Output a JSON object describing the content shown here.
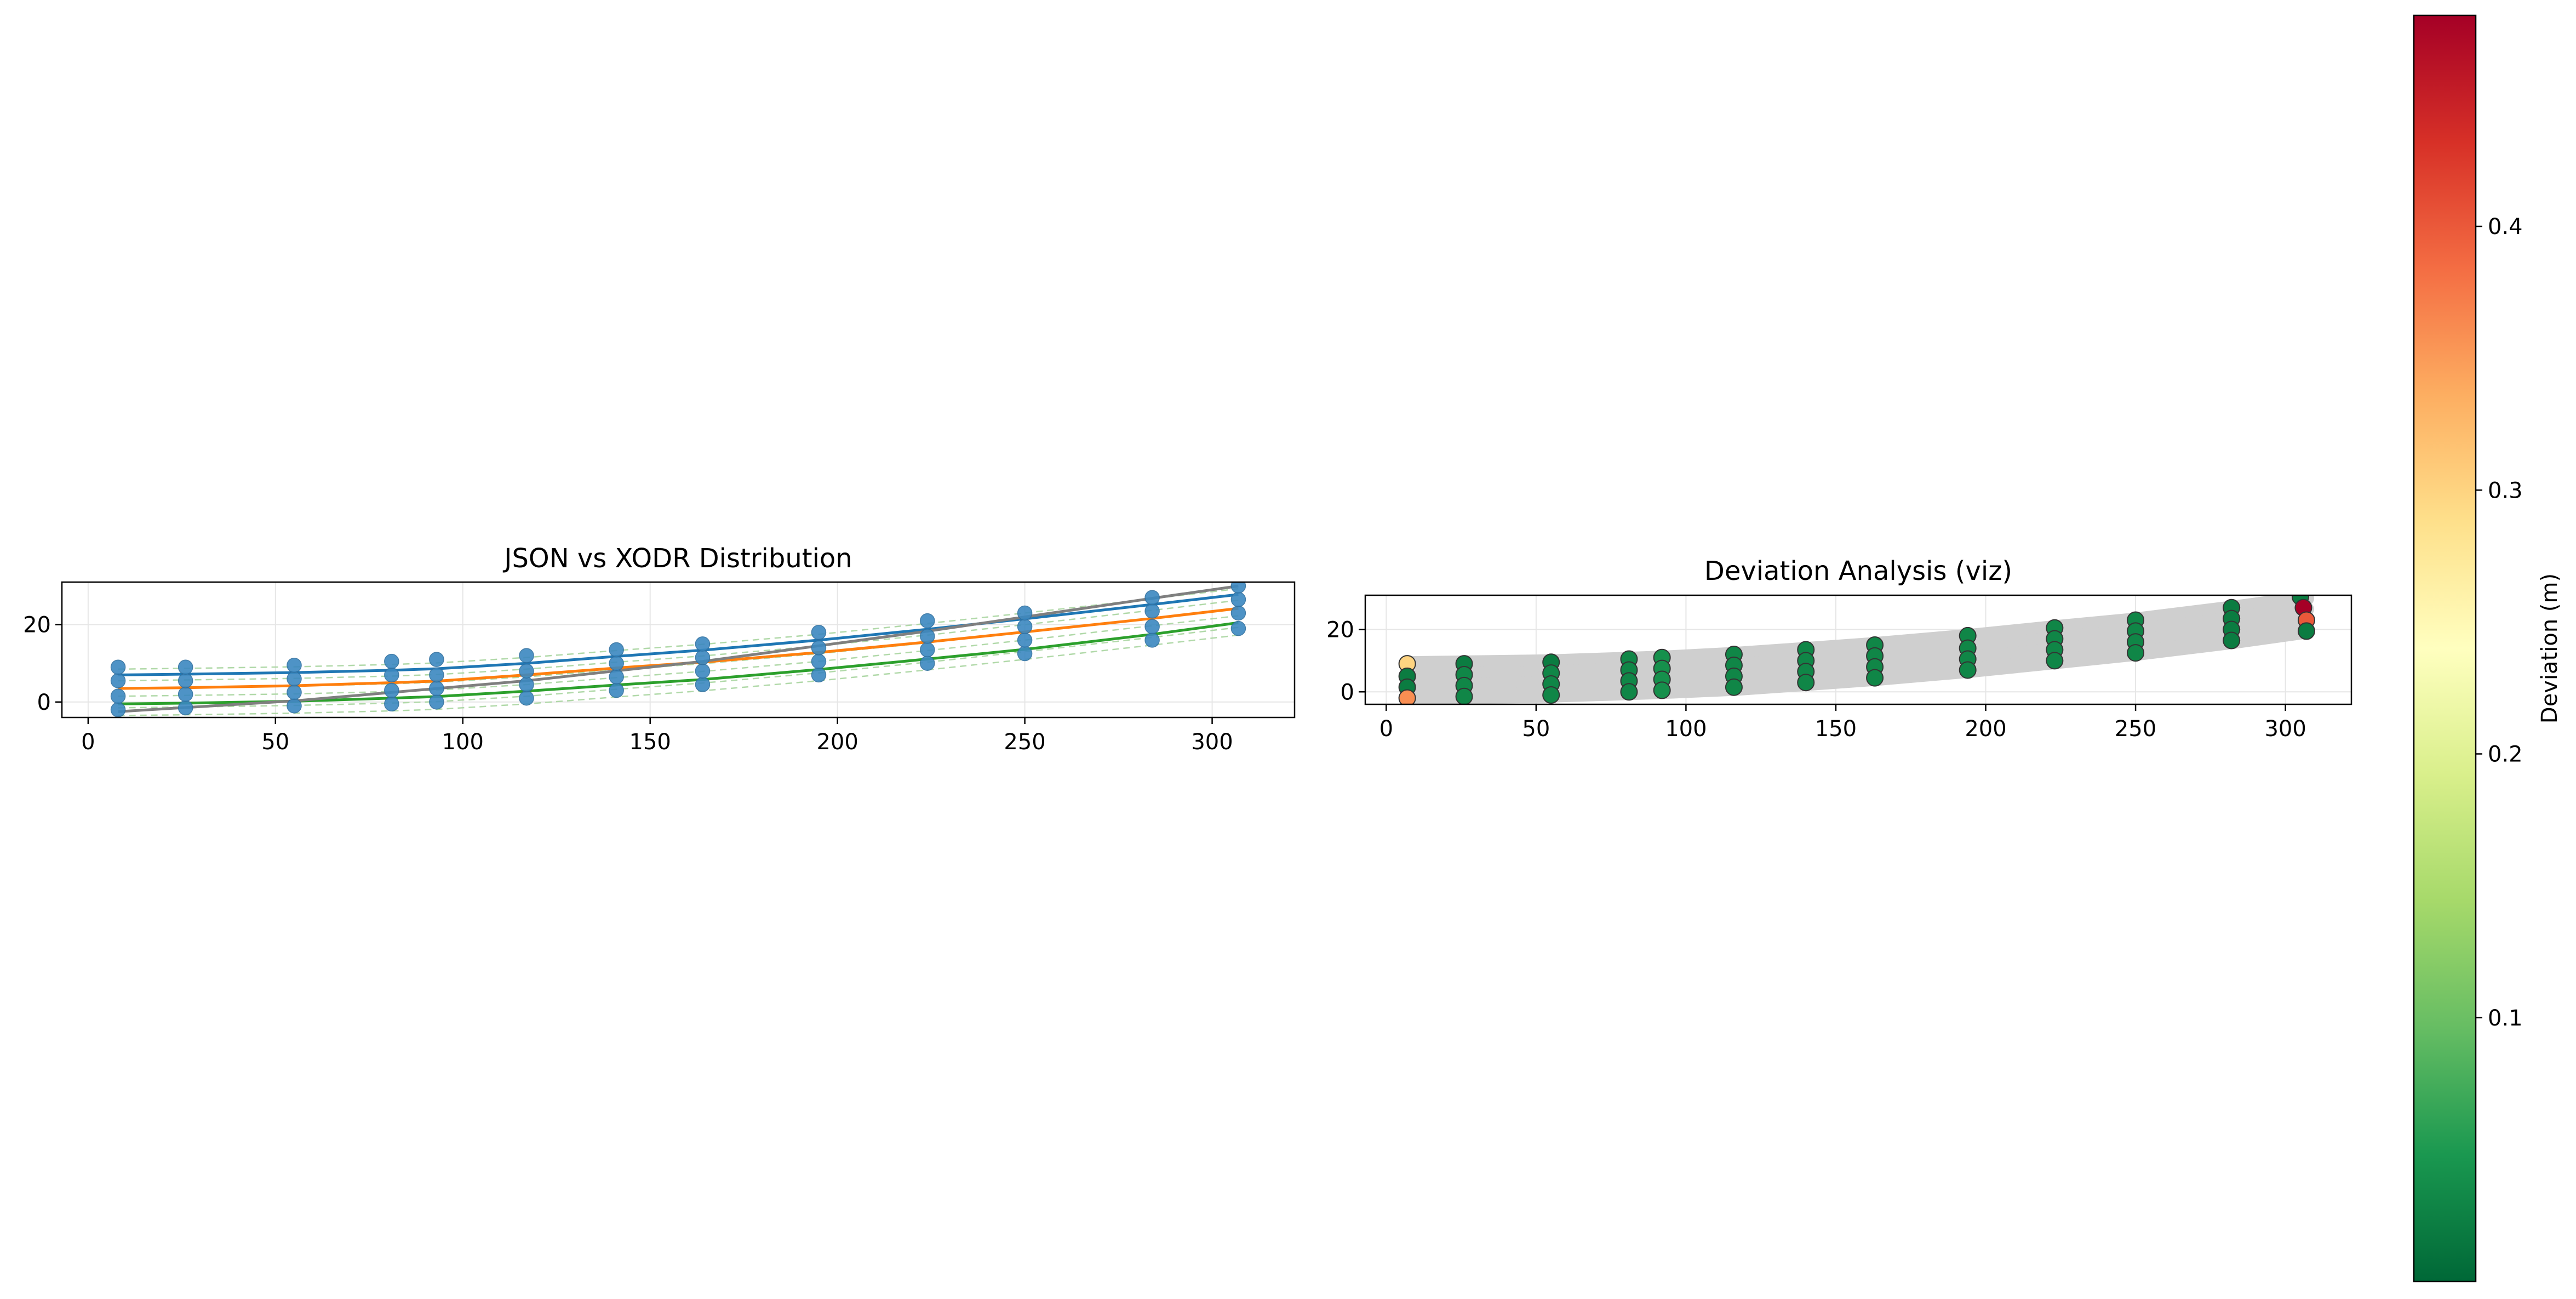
{
  "figure": {
    "background": "#ffffff"
  },
  "chart_data": [
    {
      "type": "line",
      "title": "JSON vs XODR Distribution",
      "xlabel": "",
      "ylabel": "",
      "xlim": [
        -7,
        322
      ],
      "ylim": [
        -4,
        31
      ],
      "xticks": [
        0,
        50,
        100,
        150,
        200,
        250,
        300
      ],
      "yticks": [
        0,
        20
      ],
      "grid": true,
      "legend": "none",
      "x_stations": [
        8,
        26,
        55,
        81,
        93,
        117,
        141,
        164,
        195,
        224,
        250,
        284,
        307
      ],
      "json_point_color": "#3b88c0",
      "json_points": [
        [
          8,
          -2
        ],
        [
          8,
          1.5
        ],
        [
          8,
          5.5
        ],
        [
          8,
          9
        ],
        [
          26,
          -1.5
        ],
        [
          26,
          2
        ],
        [
          26,
          5.5
        ],
        [
          26,
          9
        ],
        [
          55,
          -1
        ],
        [
          55,
          2.5
        ],
        [
          55,
          6
        ],
        [
          55,
          9.5
        ],
        [
          81,
          -0.5
        ],
        [
          81,
          3
        ],
        [
          81,
          7
        ],
        [
          81,
          10.5
        ],
        [
          93,
          0
        ],
        [
          93,
          3.5
        ],
        [
          93,
          7
        ],
        [
          93,
          11
        ],
        [
          117,
          1
        ],
        [
          117,
          4.5
        ],
        [
          117,
          8
        ],
        [
          117,
          12
        ],
        [
          141,
          3
        ],
        [
          141,
          6.5
        ],
        [
          141,
          10
        ],
        [
          141,
          13.5
        ],
        [
          164,
          4.5
        ],
        [
          164,
          8
        ],
        [
          164,
          11.5
        ],
        [
          164,
          15
        ],
        [
          195,
          7
        ],
        [
          195,
          10.5
        ],
        [
          195,
          14
        ],
        [
          195,
          18
        ],
        [
          224,
          10
        ],
        [
          224,
          13.5
        ],
        [
          224,
          17
        ],
        [
          224,
          21
        ],
        [
          250,
          12.5
        ],
        [
          250,
          16
        ],
        [
          250,
          19.5
        ],
        [
          250,
          23
        ],
        [
          284,
          16
        ],
        [
          284,
          19.5
        ],
        [
          284,
          23.5
        ],
        [
          284,
          27
        ],
        [
          307,
          19
        ],
        [
          307,
          23
        ],
        [
          307,
          26.5
        ],
        [
          307,
          30
        ]
      ],
      "series": [
        {
          "color": "#1f77b4",
          "x": [
            8,
            26,
            55,
            81,
            93,
            117,
            141,
            164,
            195,
            224,
            250,
            284,
            307
          ],
          "y": [
            7,
            7.2,
            7.6,
            8.2,
            8.6,
            10,
            11.8,
            13.4,
            16,
            18.8,
            21.5,
            25.2,
            27.8
          ]
        },
        {
          "color": "#ff7f0e",
          "x": [
            8,
            26,
            55,
            81,
            93,
            117,
            141,
            164,
            195,
            224,
            250,
            284,
            307
          ],
          "y": [
            3.5,
            3.7,
            4.2,
            5,
            5.4,
            7,
            8.8,
            10.3,
            12.8,
            15.5,
            18.1,
            21.6,
            24.2
          ]
        },
        {
          "color": "#2ca02c",
          "x": [
            8,
            26,
            55,
            81,
            93,
            117,
            141,
            164,
            195,
            224,
            250,
            284,
            307
          ],
          "y": [
            -0.5,
            -0.3,
            0.2,
            1,
            1.4,
            2.8,
            4.4,
            5.8,
            8.4,
            11.1,
            13.6,
            17.5,
            20.5
          ]
        },
        {
          "color": "#7f7f7f",
          "x": [
            8,
            55,
            117,
            164,
            224,
            284,
            307
          ],
          "y": [
            -2.5,
            0.3,
            5.5,
            10.5,
            18.3,
            26.8,
            30
          ]
        }
      ],
      "reference_lines": {
        "color": "#a8d5a0",
        "offsets": [
          -3.5,
          -1.5,
          1.5,
          3.5,
          5.5,
          8.5
        ]
      }
    },
    {
      "type": "scatter",
      "title": "Deviation Analysis (viz)",
      "xlabel": "",
      "ylabel": "",
      "xlim": [
        -7,
        322
      ],
      "ylim": [
        -4,
        31
      ],
      "xticks": [
        0,
        50,
        100,
        150,
        200,
        250,
        300
      ],
      "yticks": [
        0,
        20
      ],
      "grid": true,
      "lane_band_color": "#cfcfcf",
      "lanes": [
        {
          "x": [
            8,
            26,
            55,
            81,
            93,
            117,
            141,
            164,
            195,
            224,
            250,
            284,
            307
          ],
          "y": [
            9,
            9.2,
            9.6,
            10.4,
            10.8,
            12,
            13.6,
            15.2,
            17.8,
            20.6,
            23,
            27,
            30
          ]
        },
        {
          "x": [
            8,
            26,
            55,
            81,
            93,
            117,
            141,
            164,
            195,
            224,
            250,
            284,
            307
          ],
          "y": [
            5,
            5.5,
            6,
            7,
            7.4,
            8.5,
            10,
            11.6,
            14.2,
            17,
            19.5,
            23.5,
            26.5
          ]
        },
        {
          "x": [
            8,
            26,
            55,
            81,
            93,
            117,
            141,
            164,
            195,
            224,
            250,
            284,
            307
          ],
          "y": [
            1.5,
            2,
            2.5,
            3.4,
            3.8,
            4.8,
            6.4,
            8,
            10.6,
            13.4,
            16,
            20,
            23
          ]
        },
        {
          "x": [
            8,
            26,
            55,
            81,
            93,
            117,
            141,
            164,
            195,
            224,
            250,
            284,
            307
          ],
          "y": [
            -2,
            -1.5,
            -1,
            -0.2,
            0.2,
            1.2,
            2.8,
            4.4,
            7,
            9.8,
            12.4,
            16.4,
            19.5
          ]
        }
      ],
      "points": [
        {
          "x": 7,
          "y": 9,
          "d": 0.3
        },
        {
          "x": 7,
          "y": 5,
          "d": 0.02
        },
        {
          "x": 7,
          "y": 1.5,
          "d": 0.02
        },
        {
          "x": 7,
          "y": -2,
          "d": 0.36
        },
        {
          "x": 26,
          "y": 9,
          "d": 0.02
        },
        {
          "x": 26,
          "y": 5.5,
          "d": 0.03
        },
        {
          "x": 26,
          "y": 2,
          "d": 0.03
        },
        {
          "x": 26,
          "y": -1.5,
          "d": 0.03
        },
        {
          "x": 55,
          "y": 9.5,
          "d": 0.02
        },
        {
          "x": 55,
          "y": 6,
          "d": 0.03
        },
        {
          "x": 55,
          "y": 2.5,
          "d": 0.03
        },
        {
          "x": 55,
          "y": -1,
          "d": 0.03
        },
        {
          "x": 81,
          "y": 10.5,
          "d": 0.03
        },
        {
          "x": 81,
          "y": 7,
          "d": 0.03
        },
        {
          "x": 81,
          "y": 3.5,
          "d": 0.03
        },
        {
          "x": 81,
          "y": 0,
          "d": 0.03
        },
        {
          "x": 92,
          "y": 11,
          "d": 0.04
        },
        {
          "x": 92,
          "y": 7.5,
          "d": 0.04
        },
        {
          "x": 92,
          "y": 4,
          "d": 0.04
        },
        {
          "x": 92,
          "y": 0.5,
          "d": 0.04
        },
        {
          "x": 116,
          "y": 12,
          "d": 0.03
        },
        {
          "x": 116,
          "y": 8.5,
          "d": 0.03
        },
        {
          "x": 116,
          "y": 5,
          "d": 0.03
        },
        {
          "x": 116,
          "y": 1.5,
          "d": 0.03
        },
        {
          "x": 140,
          "y": 13.5,
          "d": 0.03
        },
        {
          "x": 140,
          "y": 10,
          "d": 0.03
        },
        {
          "x": 140,
          "y": 6.5,
          "d": 0.03
        },
        {
          "x": 140,
          "y": 3,
          "d": 0.03
        },
        {
          "x": 163,
          "y": 15,
          "d": 0.03
        },
        {
          "x": 163,
          "y": 11.5,
          "d": 0.03
        },
        {
          "x": 163,
          "y": 8,
          "d": 0.03
        },
        {
          "x": 163,
          "y": 4.5,
          "d": 0.03
        },
        {
          "x": 194,
          "y": 18,
          "d": 0.03
        },
        {
          "x": 194,
          "y": 14,
          "d": 0.03
        },
        {
          "x": 194,
          "y": 10.5,
          "d": 0.03
        },
        {
          "x": 194,
          "y": 7,
          "d": 0.03
        },
        {
          "x": 223,
          "y": 20.5,
          "d": 0.03
        },
        {
          "x": 223,
          "y": 17,
          "d": 0.03
        },
        {
          "x": 223,
          "y": 13.5,
          "d": 0.03
        },
        {
          "x": 223,
          "y": 10,
          "d": 0.03
        },
        {
          "x": 250,
          "y": 23,
          "d": 0.03
        },
        {
          "x": 250,
          "y": 19.5,
          "d": 0.03
        },
        {
          "x": 250,
          "y": 16,
          "d": 0.03
        },
        {
          "x": 250,
          "y": 12.5,
          "d": 0.03
        },
        {
          "x": 282,
          "y": 27,
          "d": 0.02
        },
        {
          "x": 282,
          "y": 23.5,
          "d": 0.02
        },
        {
          "x": 282,
          "y": 20,
          "d": 0.02
        },
        {
          "x": 282,
          "y": 16.5,
          "d": 0.02
        },
        {
          "x": 305,
          "y": 30.5,
          "d": 0.02
        },
        {
          "x": 306,
          "y": 27,
          "d": 0.48
        },
        {
          "x": 307,
          "y": 23,
          "d": 0.4
        },
        {
          "x": 307,
          "y": 19.5,
          "d": 0.02
        }
      ],
      "colorbar": {
        "label": "Deviation (m)",
        "min": 0.0,
        "max": 0.48,
        "ticks": [
          0.1,
          0.2,
          0.3,
          0.4
        ],
        "tick_labels": [
          "0.1",
          "0.2",
          "0.3",
          "0.4"
        ],
        "colormap": "RdYlGn_r"
      }
    }
  ]
}
